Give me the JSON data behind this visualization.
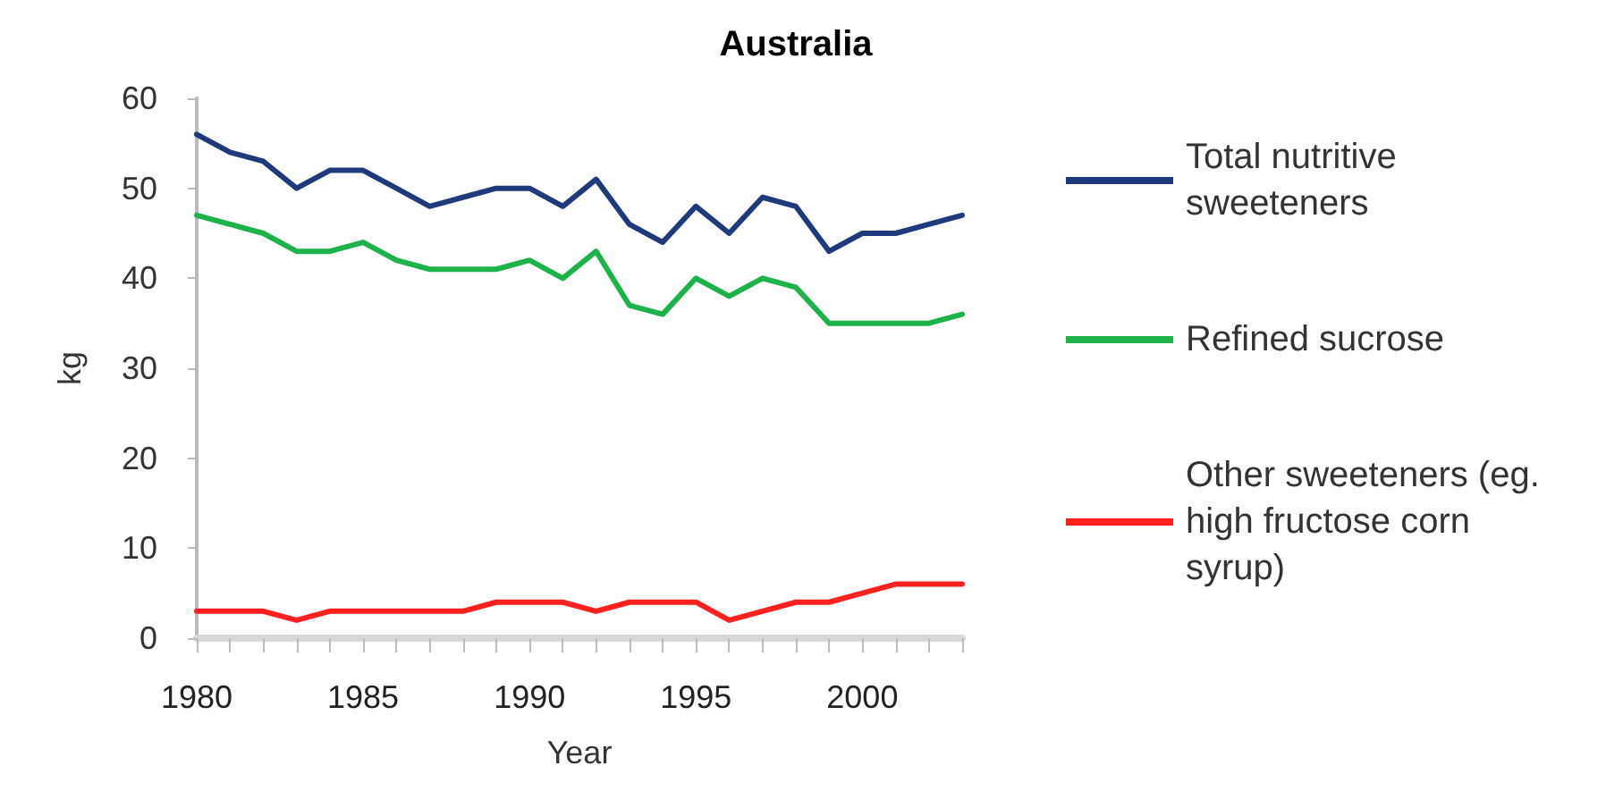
{
  "chart_data": {
    "type": "line",
    "title": "Australia",
    "xlabel": "Year",
    "ylabel": "kg",
    "categories": [
      "1980",
      null,
      null,
      null,
      null,
      "1985",
      null,
      null,
      null,
      null,
      "1990",
      null,
      null,
      null,
      null,
      "1995",
      null,
      null,
      null,
      null,
      "2000",
      null,
      null,
      null
    ],
    "series": [
      {
        "name": "Total nutritive sweeteners",
        "color": "#1f3a7a",
        "values": [
          56,
          54,
          53,
          50,
          52,
          52,
          50,
          48,
          49,
          50,
          50,
          48,
          51,
          46,
          44,
          48,
          45,
          49,
          48,
          43,
          45,
          45,
          46,
          47
        ]
      },
      {
        "name": "Refined sucrose",
        "color": "#1db34a",
        "values": [
          47,
          46,
          45,
          43,
          43,
          44,
          42,
          41,
          41,
          41,
          42,
          40,
          43,
          37,
          36,
          40,
          38,
          40,
          39,
          35,
          35,
          35,
          35,
          36
        ]
      },
      {
        "name": "Other sweeteners (eg. high fructose corn syrup)",
        "color": "#ff2020",
        "values": [
          3,
          3,
          3,
          2,
          3,
          3,
          3,
          3,
          3,
          4,
          4,
          4,
          3,
          4,
          4,
          4,
          2,
          3,
          4,
          4,
          5,
          6,
          6,
          6
        ]
      }
    ],
    "ylim": [
      0,
      60
    ],
    "yticks": [
      0,
      10,
      20,
      30,
      40,
      50,
      60
    ],
    "grid": false,
    "legend": "right",
    "marker": "none",
    "line_style": "solid"
  }
}
